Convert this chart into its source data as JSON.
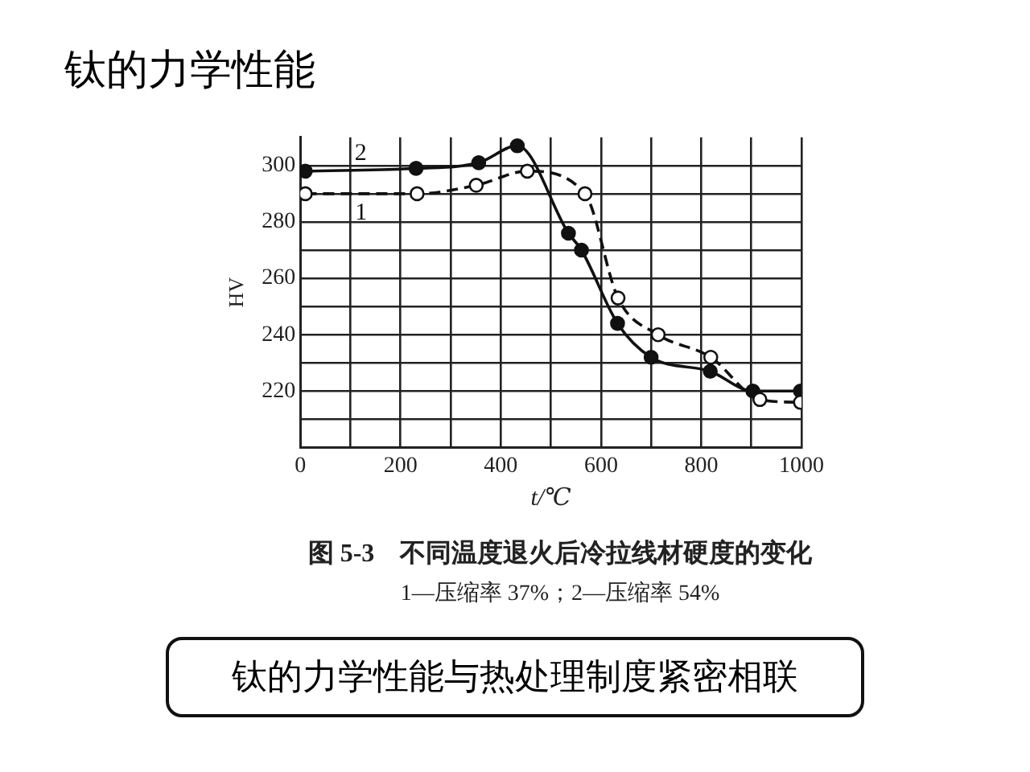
{
  "chart_data": {
    "type": "line",
    "title": "钛的力学性能",
    "xlabel": "t/℃",
    "ylabel": "HV",
    "annotations": [
      "图 5-3　不同温度退火后冷拉线材硬度的变化",
      "1—压缩率 37%；2—压缩率 54%",
      "钛的力学性能与热处理制度紧密相联"
    ],
    "series": [
      {
        "name": "1",
        "color": "#111111",
        "line_style": "dashed",
        "x": [
          10,
          233,
          351,
          453,
          568,
          634,
          714,
          819,
          917,
          998
        ],
        "values": [
          290,
          290,
          293,
          298,
          290,
          253,
          240,
          232,
          217,
          216
        ]
      },
      {
        "name": "2",
        "color": "#111111",
        "line_style": "solid",
        "x": [
          10,
          231,
          356,
          433,
          535,
          561,
          633,
          700,
          818,
          903,
          998
        ],
        "values": [
          298,
          299,
          301,
          307,
          276,
          270,
          244,
          232,
          227,
          220,
          220
        ]
      }
    ],
    "xlim": [
      0,
      1000
    ],
    "xticks": [
      0,
      {
        "value": 100,
        "label": null
      },
      200,
      {
        "value": 300,
        "label": null
      },
      400,
      {
        "value": 500,
        "label": null
      },
      600,
      {
        "value": 700,
        "label": null
      },
      800,
      {
        "value": 900,
        "label": null
      },
      1000
    ],
    "ylim": [
      200,
      310
    ],
    "yticks": [
      {
        "value": 210,
        "label": null
      },
      220,
      {
        "value": 230,
        "label": null
      },
      240,
      {
        "value": 250,
        "label": null
      },
      260,
      {
        "value": 270,
        "label": null
      },
      280,
      {
        "value": 290,
        "label": null
      },
      300
    ],
    "grid": true,
    "legend": false,
    "marker": "circle"
  }
}
